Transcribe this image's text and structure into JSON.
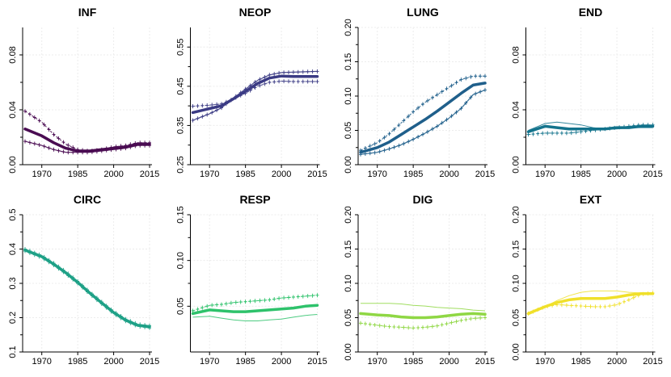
{
  "chart_data": [
    {
      "type": "line",
      "title": "INF",
      "x": [
        1963,
        1970,
        1975,
        1980,
        1985,
        1990,
        1995,
        2000,
        2005,
        2010,
        2015
      ],
      "xticks": [
        1970,
        1985,
        2000,
        2015
      ],
      "ylim": [
        0,
        0.1
      ],
      "yticks": [
        0,
        0.04,
        0.08
      ],
      "ytick_labels": [
        "0.00",
        "0.04",
        "0.08"
      ],
      "color": "#4a0c52",
      "series": [
        {
          "style": "thick",
          "values": [
            0.026,
            0.021,
            0.016,
            0.012,
            0.01,
            0.01,
            0.011,
            0.012,
            0.013,
            0.015,
            0.015
          ]
        },
        {
          "style": "dashed-cross",
          "values": [
            0.039,
            0.031,
            0.022,
            0.015,
            0.011,
            0.01,
            0.011,
            0.013,
            0.014,
            0.016,
            0.016
          ]
        },
        {
          "style": "thin-cross",
          "values": [
            0.017,
            0.014,
            0.011,
            0.009,
            0.009,
            0.009,
            0.01,
            0.011,
            0.012,
            0.014,
            0.014
          ]
        }
      ]
    },
    {
      "type": "line",
      "title": "NEOP",
      "x": [
        1963,
        1970,
        1975,
        1980,
        1985,
        1990,
        1995,
        2000,
        2005,
        2010,
        2015
      ],
      "xticks": [
        1970,
        1985,
        2000,
        2015
      ],
      "ylim": [
        0.25,
        0.6
      ],
      "yticks": [
        0.25,
        0.35,
        0.45,
        0.55
      ],
      "ytick_labels": [
        "0.25",
        "0.35",
        "0.45",
        "0.55"
      ],
      "color": "#3b3b84",
      "series": [
        {
          "style": "thick",
          "values": [
            0.383,
            0.393,
            0.4,
            0.418,
            0.437,
            0.457,
            0.471,
            0.476,
            0.475,
            0.475,
            0.475
          ]
        },
        {
          "style": "dashed-cross",
          "values": [
            0.399,
            0.402,
            0.405,
            0.418,
            0.432,
            0.45,
            0.46,
            0.463,
            0.462,
            0.462,
            0.462
          ]
        },
        {
          "style": "thin-cross",
          "values": [
            0.363,
            0.38,
            0.395,
            0.42,
            0.443,
            0.465,
            0.479,
            0.485,
            0.486,
            0.487,
            0.488
          ]
        }
      ]
    },
    {
      "type": "line",
      "title": "LUNG",
      "x": [
        1963,
        1970,
        1975,
        1980,
        1985,
        1990,
        1995,
        2000,
        2005,
        2010,
        2015
      ],
      "xticks": [
        1970,
        1985,
        2000,
        2015
      ],
      "ylim": [
        0,
        0.2
      ],
      "yticks": [
        0,
        0.05,
        0.1,
        0.15,
        0.2
      ],
      "ytick_labels": [
        "0.00",
        "0.05",
        "0.10",
        "0.15",
        "0.20"
      ],
      "color": "#1f5f8b",
      "series": [
        {
          "style": "thick",
          "values": [
            0.018,
            0.025,
            0.033,
            0.044,
            0.055,
            0.066,
            0.078,
            0.091,
            0.104,
            0.116,
            0.119
          ]
        },
        {
          "style": "dashed-cross",
          "values": [
            0.021,
            0.032,
            0.045,
            0.061,
            0.077,
            0.091,
            0.102,
            0.113,
            0.124,
            0.129,
            0.129
          ]
        },
        {
          "style": "thin-cross",
          "values": [
            0.015,
            0.018,
            0.023,
            0.029,
            0.037,
            0.046,
            0.056,
            0.068,
            0.082,
            0.102,
            0.109
          ]
        }
      ]
    },
    {
      "type": "line",
      "title": "END",
      "x": [
        1963,
        1970,
        1975,
        1980,
        1985,
        1990,
        1995,
        2000,
        2005,
        2010,
        2015
      ],
      "xticks": [
        1970,
        1985,
        2000,
        2015
      ],
      "ylim": [
        0,
        0.1
      ],
      "yticks": [
        0,
        0.04,
        0.08
      ],
      "ytick_labels": [
        "0.00",
        "0.04",
        "0.08"
      ],
      "color": "#13738c",
      "series": [
        {
          "style": "thick",
          "values": [
            0.024,
            0.028,
            0.027,
            0.026,
            0.026,
            0.026,
            0.026,
            0.027,
            0.027,
            0.028,
            0.028
          ]
        },
        {
          "style": "thin",
          "values": [
            0.025,
            0.03,
            0.031,
            0.03,
            0.029,
            0.027,
            0.026,
            0.026,
            0.027,
            0.027,
            0.027
          ]
        },
        {
          "style": "dashed-cross",
          "values": [
            0.022,
            0.023,
            0.023,
            0.023,
            0.024,
            0.025,
            0.026,
            0.027,
            0.028,
            0.029,
            0.029
          ]
        }
      ]
    },
    {
      "type": "line",
      "title": "CIRC",
      "x": [
        1963,
        1970,
        1975,
        1980,
        1985,
        1990,
        1995,
        2000,
        2005,
        2010,
        2015
      ],
      "xticks": [
        1970,
        1985,
        2000,
        2015
      ],
      "ylim": [
        0.1,
        0.5
      ],
      "yticks": [
        0.1,
        0.2,
        0.3,
        0.4,
        0.5
      ],
      "ytick_labels": [
        "0.1",
        "0.2",
        "0.3",
        "0.4",
        "0.5"
      ],
      "color": "#1fa187",
      "series": [
        {
          "style": "thick",
          "values": [
            0.397,
            0.378,
            0.356,
            0.331,
            0.303,
            0.272,
            0.243,
            0.215,
            0.193,
            0.178,
            0.174
          ]
        },
        {
          "style": "dashed-cross",
          "values": [
            0.4,
            0.381,
            0.359,
            0.334,
            0.306,
            0.275,
            0.246,
            0.218,
            0.196,
            0.181,
            0.177
          ]
        },
        {
          "style": "thin-cross",
          "values": [
            0.394,
            0.375,
            0.353,
            0.328,
            0.3,
            0.269,
            0.24,
            0.212,
            0.19,
            0.175,
            0.17
          ]
        }
      ]
    },
    {
      "type": "line",
      "title": "RESP",
      "x": [
        1963,
        1970,
        1975,
        1980,
        1985,
        1990,
        1995,
        2000,
        2005,
        2010,
        2015
      ],
      "xticks": [
        1970,
        1985,
        2000,
        2015
      ],
      "ylim": [
        0,
        0.15
      ],
      "yticks": [
        0.05,
        0.1,
        0.15
      ],
      "ytick_labels": [
        "0.05",
        "0.10",
        "0.15"
      ],
      "color": "#2ec26b",
      "series": [
        {
          "style": "thick",
          "values": [
            0.042,
            0.046,
            0.045,
            0.044,
            0.044,
            0.045,
            0.046,
            0.047,
            0.048,
            0.05,
            0.051
          ]
        },
        {
          "style": "dashed-cross",
          "values": [
            0.045,
            0.051,
            0.052,
            0.054,
            0.055,
            0.056,
            0.057,
            0.059,
            0.06,
            0.061,
            0.062
          ]
        },
        {
          "style": "thin",
          "values": [
            0.038,
            0.039,
            0.037,
            0.035,
            0.034,
            0.034,
            0.035,
            0.036,
            0.038,
            0.04,
            0.041
          ]
        }
      ]
    },
    {
      "type": "line",
      "title": "DIG",
      "x": [
        1963,
        1970,
        1975,
        1980,
        1985,
        1990,
        1995,
        2000,
        2005,
        2010,
        2015
      ],
      "xticks": [
        1970,
        1985,
        2000,
        2015
      ],
      "ylim": [
        0,
        0.2
      ],
      "yticks": [
        0,
        0.05,
        0.1,
        0.15,
        0.2
      ],
      "ytick_labels": [
        "0.00",
        "0.05",
        "0.10",
        "0.15",
        "0.20"
      ],
      "color": "#8fd744",
      "series": [
        {
          "style": "thick",
          "values": [
            0.056,
            0.054,
            0.053,
            0.051,
            0.05,
            0.05,
            0.051,
            0.053,
            0.055,
            0.056,
            0.055
          ]
        },
        {
          "style": "thin",
          "values": [
            0.071,
            0.071,
            0.071,
            0.07,
            0.068,
            0.067,
            0.065,
            0.064,
            0.063,
            0.061,
            0.06
          ]
        },
        {
          "style": "dashed-cross",
          "values": [
            0.042,
            0.039,
            0.037,
            0.036,
            0.035,
            0.036,
            0.038,
            0.042,
            0.046,
            0.049,
            0.05
          ]
        }
      ]
    },
    {
      "type": "line",
      "title": "EXT",
      "x": [
        1963,
        1970,
        1975,
        1980,
        1985,
        1990,
        1995,
        2000,
        2005,
        2010,
        2015
      ],
      "xticks": [
        1970,
        1985,
        2000,
        2015
      ],
      "ylim": [
        0,
        0.2
      ],
      "yticks": [
        0,
        0.05,
        0.1,
        0.15,
        0.2
      ],
      "ytick_labels": [
        "0.00",
        "0.05",
        "0.10",
        "0.15",
        "0.20"
      ],
      "color": "#f0e02a",
      "series": [
        {
          "style": "thick",
          "values": [
            0.056,
            0.066,
            0.072,
            0.076,
            0.078,
            0.078,
            0.078,
            0.08,
            0.083,
            0.085,
            0.085
          ]
        },
        {
          "style": "thin",
          "values": [
            0.054,
            0.066,
            0.075,
            0.082,
            0.087,
            0.089,
            0.089,
            0.089,
            0.087,
            0.086,
            0.086
          ]
        },
        {
          "style": "dashed-cross",
          "values": [
            0.056,
            0.066,
            0.069,
            0.068,
            0.067,
            0.066,
            0.066,
            0.069,
            0.076,
            0.084,
            0.086
          ]
        }
      ]
    }
  ]
}
